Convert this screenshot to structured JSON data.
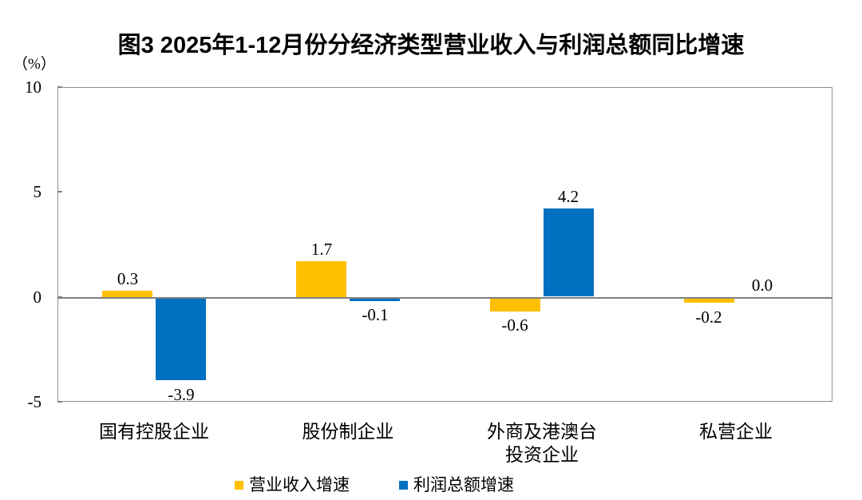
{
  "chart_data": {
    "type": "bar",
    "title": "图3  2025年1-12月份分经济类型营业收入与利润总额同比增速",
    "unit_label": "（%）",
    "categories": [
      "国有控股企业",
      "股份制企业",
      "外商及港澳台\n投资企业",
      "私营企业"
    ],
    "series": [
      {
        "name": "营业收入增速",
        "color": "#FFC000",
        "values": [
          0.3,
          1.7,
          -0.6,
          -0.2
        ]
      },
      {
        "name": "利润总额增速",
        "color": "#0070C0",
        "values": [
          -3.9,
          -0.1,
          4.2,
          0.0
        ]
      }
    ],
    "ylim": [
      -5,
      10
    ],
    "yticks": [
      10,
      5,
      0,
      -5
    ],
    "grid": false,
    "legend_position": "bottom",
    "value_labels": true,
    "value_label_decimals": 1,
    "axis_border_color": "#8f8f8f",
    "zero_line_color": "#808080",
    "background_color": "#ffffff",
    "text_color": "#000000"
  }
}
